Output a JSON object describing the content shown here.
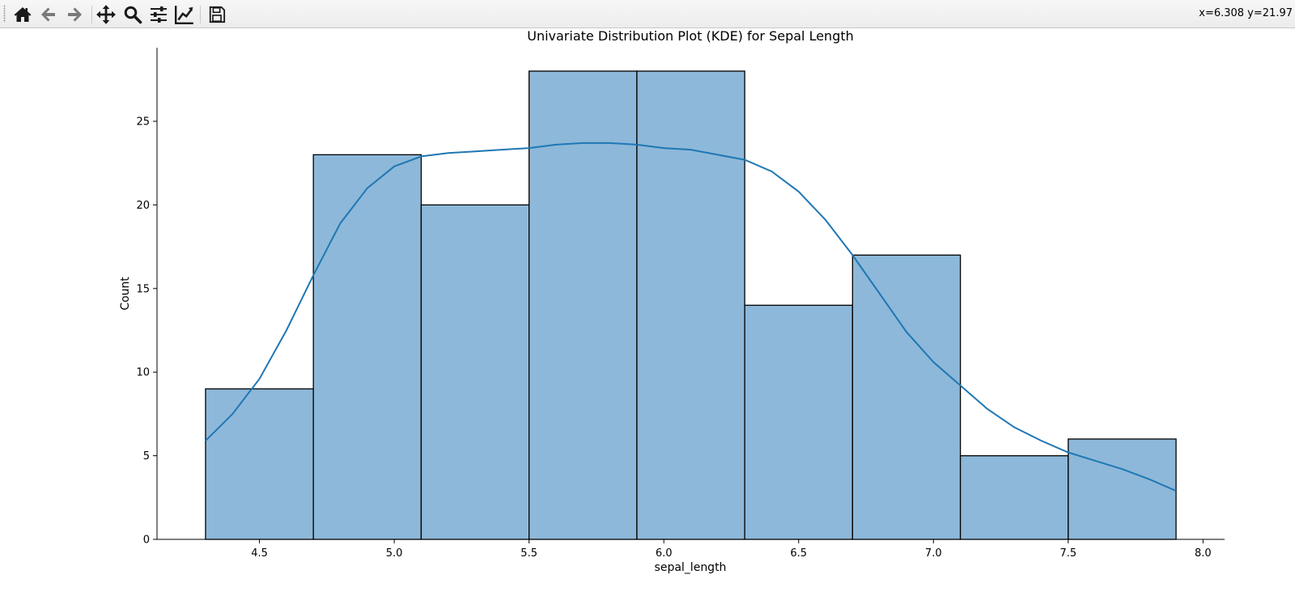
{
  "toolbar": {
    "tools": [
      {
        "name": "home-icon",
        "tooltip": "Reset original view"
      },
      {
        "name": "back-icon",
        "tooltip": "Back to previous view"
      },
      {
        "name": "forward-icon",
        "tooltip": "Forward to next view"
      },
      {
        "name": "pan-icon",
        "tooltip": "Pan axes"
      },
      {
        "name": "zoom-icon",
        "tooltip": "Zoom to rectangle"
      },
      {
        "name": "configure-subplots-icon",
        "tooltip": "Configure subplots"
      },
      {
        "name": "edit-axis-icon",
        "tooltip": "Edit axis, curve and image parameters"
      },
      {
        "name": "save-icon",
        "tooltip": "Save the figure"
      }
    ],
    "coords": "x=6.308 y=21.97"
  },
  "colors": {
    "bar_fill": "#8db8d9",
    "bar_edge": "#000000",
    "kde_line": "#1f77b4"
  },
  "chart_data": {
    "type": "bar",
    "title": "Univariate Distribution Plot (KDE) for Sepal Length",
    "xlabel": "sepal_length",
    "ylabel": "Count",
    "xlim": [
      4.12,
      8.08
    ],
    "ylim": [
      0,
      29.4
    ],
    "xticks": [
      4.5,
      5.0,
      5.5,
      6.0,
      6.5,
      7.0,
      7.5,
      8.0
    ],
    "xtick_labels": [
      "4.5",
      "5.0",
      "5.5",
      "6.0",
      "6.5",
      "7.0",
      "7.5",
      "8.0"
    ],
    "yticks": [
      0,
      5,
      10,
      15,
      20,
      25
    ],
    "ytick_labels": [
      "0",
      "5",
      "10",
      "15",
      "20",
      "25"
    ],
    "bins": [
      {
        "x0": 4.3,
        "x1": 4.7,
        "count": 9
      },
      {
        "x0": 4.7,
        "x1": 5.1,
        "count": 23
      },
      {
        "x0": 5.1,
        "x1": 5.5,
        "count": 20
      },
      {
        "x0": 5.5,
        "x1": 5.9,
        "count": 28
      },
      {
        "x0": 5.9,
        "x1": 6.3,
        "count": 28
      },
      {
        "x0": 6.3,
        "x1": 6.7,
        "count": 14
      },
      {
        "x0": 6.7,
        "x1": 7.1,
        "count": 17
      },
      {
        "x0": 7.1,
        "x1": 7.5,
        "count": 5
      },
      {
        "x0": 7.5,
        "x1": 7.9,
        "count": 6
      }
    ],
    "kde": {
      "x": [
        4.3,
        4.4,
        4.5,
        4.6,
        4.7,
        4.8,
        4.9,
        5.0,
        5.1,
        5.2,
        5.3,
        5.4,
        5.5,
        5.6,
        5.7,
        5.8,
        5.9,
        6.0,
        6.1,
        6.2,
        6.3,
        6.4,
        6.5,
        6.6,
        6.7,
        6.8,
        6.9,
        7.0,
        7.1,
        7.2,
        7.3,
        7.4,
        7.5,
        7.6,
        7.7,
        7.8,
        7.9
      ],
      "y": [
        5.9,
        7.5,
        9.6,
        12.5,
        15.8,
        18.9,
        21.0,
        22.3,
        22.9,
        23.1,
        23.2,
        23.3,
        23.4,
        23.6,
        23.7,
        23.7,
        23.6,
        23.4,
        23.3,
        23.0,
        22.7,
        22.0,
        20.8,
        19.1,
        17.0,
        14.7,
        12.4,
        10.6,
        9.2,
        7.8,
        6.7,
        5.9,
        5.2,
        4.7,
        4.2,
        3.6,
        2.9
      ]
    },
    "grid": false
  }
}
